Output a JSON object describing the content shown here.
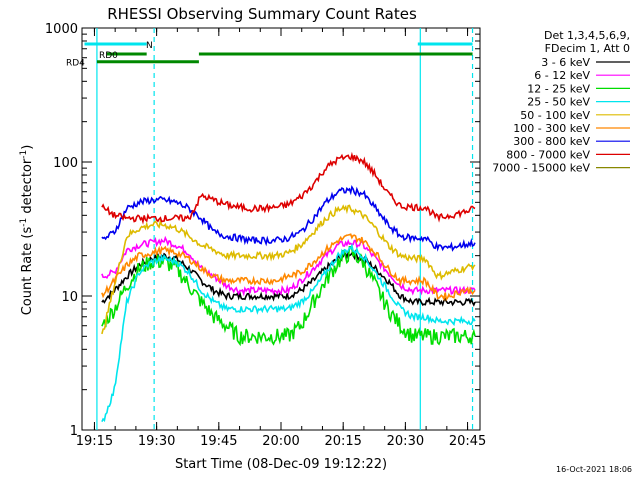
{
  "chart_data": {
    "type": "line",
    "title": "RHESSI Observing Summary Count Rates",
    "xlabel": "Start Time (08-Dec-09 19:12:22)",
    "ylabel_prefix": "Count Rate (s",
    "ylabel_sup1": "-1",
    "ylabel_mid": " detector",
    "ylabel_sup2": "-1",
    "ylabel_suffix": ")",
    "y_scale": "log",
    "ylim": [
      1,
      1000
    ],
    "xlim_minutes": [
      19.2,
      20.8
    ],
    "x_ticks": [
      {
        "t": 19.25,
        "label": "19:15"
      },
      {
        "t": 19.5,
        "label": "19:30"
      },
      {
        "t": 19.75,
        "label": "19:45"
      },
      {
        "t": 20.0,
        "label": "20:00"
      },
      {
        "t": 20.25,
        "label": "20:15"
      },
      {
        "t": 20.5,
        "label": "20:30"
      },
      {
        "t": 20.75,
        "label": "20:45"
      }
    ],
    "y_ticks": [
      {
        "v": 1,
        "label": "1"
      },
      {
        "v": 10,
        "label": "10"
      },
      {
        "v": 100,
        "label": "100"
      },
      {
        "v": 1000,
        "label": "1000"
      }
    ],
    "legend_header": [
      "Det 1,3,4,5,6,9,",
      "FDecim 1, Att 0"
    ],
    "series": [
      {
        "name": "3 - 6 keV",
        "color": "#000000",
        "x": [
          19.28,
          19.33,
          19.38,
          19.43,
          19.48,
          19.53,
          19.58,
          19.63,
          19.68,
          19.73,
          19.78,
          19.83,
          19.88,
          19.93,
          19.98,
          20.03,
          20.08,
          20.13,
          20.18,
          20.23,
          20.28,
          20.33,
          20.38,
          20.43,
          20.48,
          20.53,
          20.58,
          20.63,
          20.68,
          20.73,
          20.78
        ],
        "y": [
          9,
          11,
          14,
          17,
          19,
          20,
          19,
          16,
          13,
          11,
          10,
          10,
          10,
          10,
          10,
          10,
          11,
          13,
          16,
          19,
          21,
          19,
          16,
          13,
          10,
          9,
          9,
          9,
          9,
          9,
          9
        ]
      },
      {
        "name": "6 - 12 keV",
        "color": "#ff00ff",
        "x": [
          19.28,
          19.33,
          19.38,
          19.43,
          19.48,
          19.53,
          19.58,
          19.63,
          19.68,
          19.73,
          19.78,
          19.83,
          19.88,
          19.93,
          19.98,
          20.03,
          20.08,
          20.13,
          20.18,
          20.23,
          20.28,
          20.33,
          20.38,
          20.43,
          20.48,
          20.53,
          20.58,
          20.63,
          20.68,
          20.73,
          20.78
        ],
        "y": [
          14,
          15,
          22,
          24,
          25,
          26,
          24,
          21,
          16,
          14,
          12,
          11,
          11,
          11,
          11,
          11,
          13,
          16,
          20,
          24,
          25,
          24,
          19,
          15,
          12,
          11,
          11,
          11,
          11,
          11,
          11
        ]
      },
      {
        "name": "12 - 25 keV",
        "color": "#00dd00",
        "x": [
          19.28,
          19.33,
          19.38,
          19.43,
          19.48,
          19.53,
          19.58,
          19.63,
          19.68,
          19.73,
          19.78,
          19.83,
          19.88,
          19.93,
          19.98,
          20.03,
          20.08,
          20.13,
          20.18,
          20.23,
          20.28,
          20.33,
          20.38,
          20.43,
          20.48,
          20.53,
          20.58,
          20.63,
          20.68,
          20.73,
          20.78
        ],
        "y": [
          6,
          8,
          12,
          16,
          18,
          18,
          16,
          12,
          9,
          7,
          6,
          5,
          5,
          5,
          5,
          5,
          6,
          9,
          13,
          18,
          21,
          18,
          12,
          8,
          6,
          5,
          5,
          5,
          5,
          5,
          5
        ]
      },
      {
        "name": "25 - 50 keV",
        "color": "#00e5ee",
        "x": [
          19.28,
          19.33,
          19.38,
          19.43,
          19.48,
          19.53,
          19.58,
          19.63,
          19.68,
          19.73,
          19.78,
          19.83,
          19.88,
          19.93,
          19.98,
          20.03,
          20.08,
          20.13,
          20.18,
          20.23,
          20.28,
          20.33,
          20.38,
          20.43,
          20.48,
          20.53,
          20.58,
          20.63,
          20.68,
          20.73,
          20.78
        ],
        "y": [
          1.1,
          2,
          9,
          15,
          18,
          19,
          18,
          15,
          11,
          9,
          8,
          8,
          8,
          8,
          8,
          8,
          9,
          11,
          15,
          20,
          23,
          20,
          15,
          11,
          8,
          7,
          7,
          6.5,
          6.5,
          6.5,
          6.5
        ]
      },
      {
        "name": "50 - 100 keV",
        "color": "#ddbb00",
        "x": [
          19.28,
          19.33,
          19.38,
          19.43,
          19.48,
          19.53,
          19.58,
          19.63,
          19.68,
          19.73,
          19.78,
          19.83,
          19.88,
          19.93,
          19.98,
          20.03,
          20.08,
          20.13,
          20.18,
          20.23,
          20.28,
          20.33,
          20.38,
          20.43,
          20.48,
          20.53,
          20.58,
          20.63,
          20.68,
          20.73,
          20.78
        ],
        "y": [
          5,
          12,
          28,
          32,
          34,
          34,
          32,
          28,
          24,
          22,
          20,
          20,
          20,
          20,
          20,
          21,
          24,
          30,
          38,
          44,
          45,
          40,
          32,
          24,
          20,
          19,
          19,
          14,
          15,
          16,
          17
        ]
      },
      {
        "name": "100 - 300 keV",
        "color": "#ff8800",
        "x": [
          19.28,
          19.33,
          19.38,
          19.43,
          19.48,
          19.53,
          19.58,
          19.63,
          19.68,
          19.73,
          19.78,
          19.83,
          19.88,
          19.93,
          19.98,
          20.03,
          20.08,
          20.13,
          20.18,
          20.23,
          20.28,
          20.33,
          20.38,
          20.43,
          20.48,
          20.53,
          20.58,
          20.63,
          20.68,
          20.73,
          20.78
        ],
        "y": [
          10,
          13,
          17,
          20,
          21,
          22,
          21,
          19,
          16,
          14,
          13,
          13,
          13,
          13,
          13,
          14,
          15,
          18,
          22,
          26,
          28,
          26,
          21,
          16,
          13,
          13,
          13,
          10,
          10,
          11,
          11
        ]
      },
      {
        "name": "300 - 800 keV",
        "color": "#0000ee",
        "x": [
          19.28,
          19.33,
          19.38,
          19.43,
          19.48,
          19.53,
          19.58,
          19.63,
          19.68,
          19.73,
          19.78,
          19.83,
          19.88,
          19.93,
          19.98,
          20.03,
          20.08,
          20.13,
          20.18,
          20.23,
          20.28,
          20.33,
          20.38,
          20.43,
          20.48,
          20.53,
          20.58,
          20.63,
          20.68,
          20.73,
          20.78
        ],
        "y": [
          26,
          30,
          45,
          50,
          52,
          52,
          50,
          45,
          38,
          30,
          28,
          27,
          26,
          26,
          26,
          27,
          30,
          38,
          50,
          60,
          62,
          58,
          45,
          34,
          28,
          27,
          27,
          23,
          23,
          24,
          25
        ]
      },
      {
        "name": "800 - 7000 keV",
        "color": "#dd0000",
        "x": [
          19.28,
          19.33,
          19.38,
          19.43,
          19.48,
          19.53,
          19.58,
          19.63,
          19.68,
          19.73,
          19.78,
          19.83,
          19.88,
          19.93,
          19.98,
          20.03,
          20.08,
          20.13,
          20.18,
          20.23,
          20.28,
          20.33,
          20.38,
          20.43,
          20.48,
          20.53,
          20.58,
          20.63,
          20.68,
          20.73,
          20.78
        ],
        "y": [
          46,
          40,
          38,
          38,
          38,
          38,
          38,
          38,
          56,
          52,
          48,
          46,
          45,
          45,
          46,
          48,
          55,
          68,
          90,
          105,
          110,
          102,
          80,
          58,
          47,
          46,
          46,
          38,
          40,
          42,
          45
        ]
      },
      {
        "name": "7000 - 15000 keV",
        "color": "#888800",
        "x": [],
        "y": []
      }
    ],
    "state_bars": [
      {
        "label": "N",
        "color": "#00e5ee",
        "segments": [
          [
            19.21,
            19.46
          ],
          [
            20.55,
            20.77
          ]
        ],
        "level": 760
      },
      {
        "label": "RD0",
        "color": "#008800",
        "segments": [
          [
            19.3,
            19.46
          ],
          [
            19.67,
            20.77
          ]
        ],
        "level": 640
      },
      {
        "label": "RD4",
        "color": "#008800",
        "segments": [
          [
            19.26,
            19.67
          ]
        ],
        "level": 560
      }
    ],
    "vertical_markers": [
      {
        "t": 19.26,
        "color": "#00e5ee",
        "style": "solid"
      },
      {
        "t": 19.49,
        "color": "#00e5ee",
        "style": "dashed"
      },
      {
        "t": 20.56,
        "color": "#00e5ee",
        "style": "solid"
      },
      {
        "t": 20.77,
        "color": "#00e5ee",
        "style": "dashed"
      }
    ],
    "timestamp": "16-Oct-2021 18:06"
  }
}
